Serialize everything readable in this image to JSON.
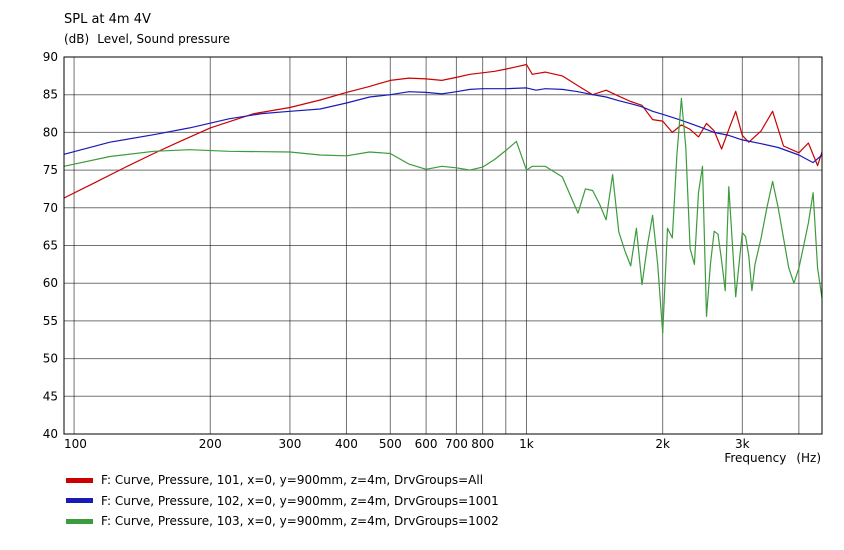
{
  "chart_data": {
    "type": "line",
    "title": "SPL at 4m 4V",
    "ylabel_unit": "(dB)",
    "ylabel": "Level, Sound pressure",
    "xlabel": "Frequency",
    "xlabel_unit": "(Hz)",
    "x_scale": "log",
    "xlim": [
      95,
      4500
    ],
    "ylim": [
      40,
      90
    ],
    "grid": true,
    "legend_position": "bottom-left",
    "y_ticks": [
      "40",
      "45",
      "50",
      "55",
      "60",
      "65",
      "70",
      "75",
      "80",
      "85",
      "90"
    ],
    "x_tick_labels": [
      {
        "value": 100,
        "label": "100"
      },
      {
        "value": 200,
        "label": "200"
      },
      {
        "value": 300,
        "label": "300"
      },
      {
        "value": 400,
        "label": "400"
      },
      {
        "value": 500,
        "label": "500"
      },
      {
        "value": 600,
        "label": "600"
      },
      {
        "value": 700,
        "label": "700"
      },
      {
        "value": 800,
        "label": "800"
      },
      {
        "value": 1000,
        "label": "1k"
      },
      {
        "value": 2000,
        "label": "2k"
      },
      {
        "value": 3000,
        "label": "3k"
      }
    ],
    "series": [
      {
        "name": "F: Curve, Pressure, 101, x=0, y=900mm, z=4m, DrvGroups=All",
        "color": "#cc0000",
        "x": [
          95,
          110,
          130,
          150,
          170,
          200,
          250,
          300,
          350,
          400,
          450,
          500,
          550,
          600,
          650,
          700,
          750,
          800,
          850,
          900,
          950,
          1000,
          1030,
          1100,
          1200,
          1300,
          1400,
          1500,
          1600,
          1700,
          1800,
          1900,
          2000,
          2100,
          2200,
          2300,
          2400,
          2500,
          2600,
          2700,
          2800,
          2900,
          3000,
          3100,
          3300,
          3500,
          3700,
          4000,
          4200,
          4400,
          4500
        ],
        "y": [
          71.3,
          73.2,
          75.4,
          77.2,
          78.7,
          80.6,
          82.5,
          83.3,
          84.3,
          85.3,
          86.1,
          86.9,
          87.2,
          87.1,
          86.9,
          87.3,
          87.7,
          87.9,
          88.1,
          88.4,
          88.7,
          89.0,
          87.7,
          88.0,
          87.5,
          86.2,
          85.0,
          85.6,
          84.8,
          84.1,
          83.6,
          81.7,
          81.5,
          80.0,
          81.0,
          80.4,
          79.4,
          81.2,
          80.2,
          77.8,
          80.4,
          82.8,
          79.6,
          78.7,
          80.2,
          82.8,
          78.2,
          77.3,
          78.6,
          75.6,
          77.4
        ]
      },
      {
        "name": "F: Curve, Pressure, 102, x=0, y=900mm, z=4m, DrvGroups=1001",
        "color": "#1a1ab8",
        "x": [
          95,
          120,
          150,
          180,
          220,
          260,
          300,
          350,
          400,
          450,
          500,
          550,
          600,
          650,
          700,
          750,
          800,
          900,
          1000,
          1050,
          1100,
          1200,
          1300,
          1400,
          1500,
          1600,
          1700,
          1800,
          1900,
          2000,
          2200,
          2400,
          2600,
          2800,
          3000,
          3300,
          3600,
          4000,
          4300,
          4500
        ],
        "y": [
          77.1,
          78.7,
          79.7,
          80.6,
          81.8,
          82.5,
          82.8,
          83.1,
          83.9,
          84.7,
          85.0,
          85.4,
          85.3,
          85.1,
          85.4,
          85.7,
          85.8,
          85.8,
          85.9,
          85.6,
          85.8,
          85.7,
          85.4,
          85.0,
          84.7,
          84.2,
          83.8,
          83.4,
          82.8,
          82.4,
          81.6,
          80.8,
          80.0,
          79.6,
          79.0,
          78.5,
          78.0,
          77.0,
          76.0,
          77.0
        ]
      },
      {
        "name": "F: Curve, Pressure, 103, x=0, y=900mm, z=4m, DrvGroups=1002",
        "color": "#3c9b3c",
        "x": [
          95,
          120,
          150,
          180,
          220,
          300,
          350,
          400,
          450,
          500,
          550,
          600,
          650,
          700,
          750,
          800,
          850,
          900,
          950,
          1000,
          1030,
          1100,
          1200,
          1300,
          1350,
          1400,
          1450,
          1500,
          1550,
          1600,
          1650,
          1700,
          1750,
          1800,
          1850,
          1900,
          1950,
          2000,
          2050,
          2100,
          2150,
          2200,
          2250,
          2300,
          2350,
          2400,
          2450,
          2500,
          2550,
          2600,
          2650,
          2700,
          2750,
          2800,
          2900,
          2950,
          3000,
          3050,
          3100,
          3150,
          3200,
          3300,
          3400,
          3500,
          3600,
          3700,
          3800,
          3900,
          4000,
          4100,
          4200,
          4300,
          4400,
          4500
        ],
        "y": [
          75.5,
          76.8,
          77.5,
          77.7,
          77.5,
          77.4,
          77.0,
          76.9,
          77.4,
          77.2,
          75.8,
          75.1,
          75.5,
          75.3,
          75.0,
          75.4,
          76.4,
          77.6,
          78.8,
          75.0,
          75.5,
          75.5,
          74.1,
          69.3,
          72.5,
          72.3,
          70.5,
          68.4,
          74.4,
          66.8,
          64.3,
          62.3,
          67.3,
          59.8,
          65.0,
          69.0,
          62.5,
          53.4,
          67.3,
          66.0,
          77.0,
          84.5,
          78.0,
          64.6,
          62.5,
          72.0,
          75.5,
          55.6,
          62.5,
          66.9,
          66.5,
          63.0,
          59.0,
          72.8,
          58.2,
          62.5,
          66.7,
          66.2,
          63.6,
          59.0,
          62.5,
          66.0,
          70.0,
          73.5,
          70.0,
          66.0,
          62.0,
          60.0,
          62.0,
          65.0,
          68.0,
          72.0,
          62.0,
          58.0
        ]
      }
    ]
  }
}
